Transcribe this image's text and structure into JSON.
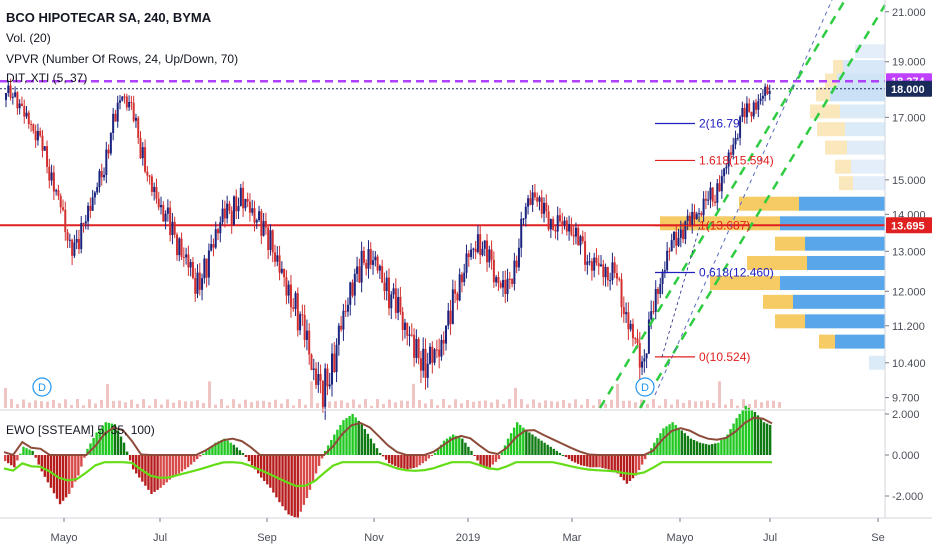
{
  "chart_data": {
    "type": "candlestick",
    "symbol": "BCO HIPOTECAR SA, 240, BYMA",
    "indicators": {
      "volume": "Vol. (20)",
      "vpvr": "VPVR (Number Of Rows, 24, Up/Down, 70)",
      "overlay": "DIT, XTI (5, 37)",
      "ewo": "EWO [SSTEAM] 5, 35, 100)"
    },
    "price_axis": {
      "scale": "log",
      "ylim": [
        9.5,
        21.5
      ],
      "ticks": [
        "21.000",
        "19.000",
        "17.000",
        "15.000",
        "14.000",
        "13.000",
        "12.000",
        "11.200",
        "10.400",
        "9.700"
      ]
    },
    "time_axis": {
      "ticks": [
        "Mayo",
        "Jul",
        "Sep",
        "Nov",
        "2019",
        "Mar",
        "Mayo",
        "Jul",
        "Se"
      ]
    },
    "price_labels": [
      {
        "value": "18.274",
        "color": "#c040ff"
      },
      {
        "value": "18.000",
        "color": "#1a2a5a"
      },
      {
        "value": "13.695",
        "color": "#e02020"
      }
    ],
    "levels": {
      "purple_dashed": 18.274,
      "dotted_navy": 18.0,
      "red_support": 13.695
    },
    "fibonacci": [
      {
        "text": "2(16.79",
        "value": 16.79,
        "color": "#2020c0"
      },
      {
        "text": "1.618(15.594)",
        "value": 15.594,
        "color": "#e02020"
      },
      {
        "text": "1(13.687)",
        "value": 13.687,
        "color": "#e02020"
      },
      {
        "text": "0.618(12.460)",
        "value": 12.46,
        "color": "#2020c0"
      },
      {
        "text": "0(10.524)",
        "value": 10.524,
        "color": "#e02020"
      }
    ],
    "dividend_markers": [
      "D",
      "D"
    ],
    "price_series": [
      17.6,
      18.0,
      17.3,
      16.8,
      16.1,
      15.2,
      14.5,
      13.5,
      13.0,
      13.9,
      14.5,
      15.5,
      16.9,
      17.8,
      17.2,
      16.0,
      15.0,
      14.4,
      13.8,
      13.1,
      12.8,
      12.3,
      12.5,
      13.2,
      13.9,
      14.1,
      14.6,
      14.2,
      13.7,
      13.3,
      12.8,
      12.2,
      11.6,
      11.0,
      10.1,
      9.9,
      10.4,
      11.2,
      11.9,
      12.5,
      13.0,
      12.7,
      12.0,
      11.6,
      11.2,
      10.8,
      10.5,
      10.4,
      10.7,
      11.5,
      12.4,
      12.9,
      13.2,
      12.8,
      12.4,
      12.1,
      12.6,
      13.8,
      14.6,
      14.2,
      13.9,
      13.7,
      13.6,
      13.2,
      12.9,
      12.7,
      12.5,
      12.3,
      11.6,
      11.0,
      10.5,
      11.3,
      12.2,
      13.0,
      13.6,
      13.8,
      14.0,
      14.2,
      14.6,
      15.3,
      16.2,
      17.0,
      17.2,
      17.6,
      18.2
    ],
    "ewo_axis": {
      "ticks": [
        "2.000",
        "0.000",
        "-2.000"
      ]
    },
    "ewo_series": [
      -0.3,
      -0.6,
      0.4,
      0.2,
      -0.8,
      -1.6,
      -2.4,
      -1.9,
      -1.0,
      0.3,
      1.1,
      1.6,
      1.5,
      0.6,
      -0.7,
      -1.3,
      -1.9,
      -1.6,
      -1.2,
      -0.9,
      -0.6,
      -0.2,
      0.2,
      0.6,
      0.8,
      0.5,
      0.1,
      -0.5,
      -1.1,
      -1.6,
      -2.3,
      -2.9,
      -3.1,
      -2.1,
      -0.9,
      0.2,
      1.0,
      1.7,
      2.0,
      1.5,
      0.8,
      0.1,
      -0.4,
      -0.6,
      -0.7,
      -0.6,
      -0.3,
      0.1,
      0.7,
      1.0,
      0.8,
      0.2,
      -0.5,
      -0.6,
      -0.2,
      0.8,
      1.6,
      1.2,
      0.9,
      0.6,
      0.3,
      0.0,
      -0.3,
      -0.5,
      -0.6,
      -0.6,
      -0.7,
      -0.9,
      -1.4,
      -1.0,
      -0.2,
      0.6,
      1.3,
      1.6,
      1.2,
      0.8,
      0.6,
      0.5,
      0.6,
      1.0,
      1.8,
      2.4,
      2.1,
      1.6,
      1.4
    ]
  }
}
